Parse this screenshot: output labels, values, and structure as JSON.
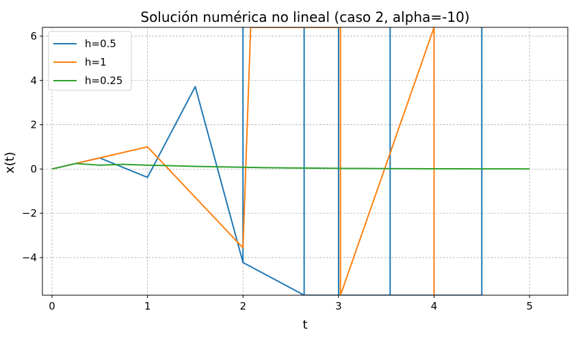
{
  "chart_data": {
    "type": "line",
    "title": "Solución numérica no lineal (caso 2, alpha=-10)",
    "xlabel": "t",
    "ylabel": "x(t)",
    "xlim": [
      -0.1,
      5.4
    ],
    "ylim": [
      -5.7,
      6.4
    ],
    "xticks": [
      0,
      1,
      2,
      3,
      4,
      5
    ],
    "xtick_labels": [
      "0",
      "1",
      "2",
      "3",
      "4",
      "5"
    ],
    "yticks": [
      -4,
      -2,
      0,
      2,
      4,
      6
    ],
    "ytick_labels": [
      "−4",
      "−2",
      "0",
      "2",
      "4",
      "6"
    ],
    "grid": true,
    "legend_position": "upper-left",
    "series": [
      {
        "name": "h=0.5",
        "color": "#1f77b4",
        "x": [
          0,
          0.5,
          1.0,
          1.5,
          2.0,
          2.0,
          2.0,
          2.64,
          2.64,
          2.64,
          3.0,
          3.0,
          3.0,
          3.54,
          3.54,
          3.54,
          4.5,
          4.5
        ],
        "y": [
          0,
          0.5,
          -0.38,
          3.72,
          -4.22,
          6.4,
          -4.22,
          -5.7,
          6.4,
          -5.7,
          -5.7,
          6.4,
          -5.7,
          -5.7,
          6.4,
          -5.7,
          -5.7,
          6.4
        ]
      },
      {
        "name": "h=1",
        "color": "#ff7f0e",
        "x": [
          0,
          1.0,
          2.0,
          2.08,
          3.02,
          3.02,
          4.0,
          4.0
        ],
        "y": [
          0,
          1.0,
          -3.56,
          6.4,
          6.4,
          -5.7,
          6.4,
          -5.7
        ]
      },
      {
        "name": "h=0.25",
        "color": "#2ca02c",
        "x": [
          0,
          0.25,
          0.5,
          0.75,
          1.0,
          1.25,
          1.5,
          1.75,
          2.0,
          2.25,
          2.5,
          2.75,
          3.0,
          3.25,
          3.5,
          3.75,
          4.0,
          4.25,
          4.5,
          4.75,
          5.0
        ],
        "y": [
          0,
          0.25,
          0.17,
          0.21,
          0.17,
          0.15,
          0.12,
          0.1,
          0.08,
          0.06,
          0.05,
          0.04,
          0.03,
          0.025,
          0.02,
          0.015,
          0.012,
          0.01,
          0.008,
          0.006,
          0.005
        ]
      }
    ]
  }
}
